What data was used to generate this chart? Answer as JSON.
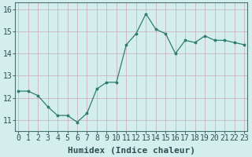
{
  "x": [
    0,
    1,
    2,
    3,
    4,
    5,
    6,
    7,
    8,
    9,
    10,
    11,
    12,
    13,
    14,
    15,
    16,
    17,
    18,
    19,
    20,
    21,
    22,
    23
  ],
  "y": [
    12.3,
    12.3,
    12.1,
    11.6,
    11.2,
    11.2,
    10.9,
    11.3,
    12.4,
    12.7,
    12.7,
    14.4,
    14.9,
    15.8,
    15.1,
    14.9,
    14.0,
    14.6,
    14.5,
    14.8,
    14.6,
    14.6,
    14.5,
    14.4
  ],
  "xlabel": "Humidex (Indice chaleur)",
  "ylim": [
    10.5,
    16.3
  ],
  "xlim": [
    -0.3,
    23.3
  ],
  "yticks": [
    11,
    12,
    13,
    14,
    15,
    16
  ],
  "xticks": [
    0,
    1,
    2,
    3,
    4,
    5,
    6,
    7,
    8,
    9,
    10,
    11,
    12,
    13,
    14,
    15,
    16,
    17,
    18,
    19,
    20,
    21,
    22,
    23
  ],
  "line_color": "#2e7d6e",
  "marker_color": "#2e7d6e",
  "bg_color": "#d4eeee",
  "grid_color": "#c8aab4",
  "axis_color": "#4a7070",
  "font_family": "monospace",
  "xlabel_fontsize": 8,
  "ylabel_fontsize": 8,
  "tick_fontsize": 7
}
